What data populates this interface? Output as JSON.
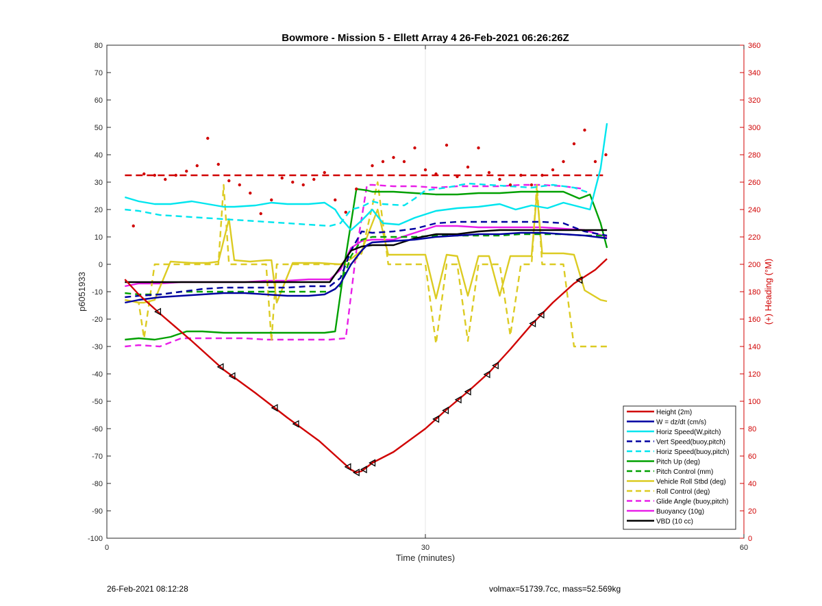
{
  "chart_data": {
    "type": "line",
    "title": "Bowmore - Mission 5 - Ellett Array 4 26-Feb-2021 06:26:26Z",
    "xlabel": "Time (minutes)",
    "ylabel_left": "p6051933",
    "ylabel_right": "(+) Heading (°M)",
    "xlim": [
      0,
      60
    ],
    "ylim_left": [
      -100,
      80
    ],
    "ylim_right": [
      0,
      360
    ],
    "x_ticks": [
      0,
      30,
      60
    ],
    "y_ticks_left": [
      80,
      70,
      60,
      50,
      40,
      30,
      20,
      10,
      0,
      -10,
      -20,
      -30,
      -40,
      -50,
      -60,
      -70,
      -80,
      -90,
      -100
    ],
    "y_ticks_right": [
      360,
      340,
      320,
      300,
      280,
      260,
      240,
      220,
      200,
      180,
      160,
      140,
      120,
      100,
      80,
      60,
      40,
      20,
      0
    ],
    "grid": "x only",
    "legend_position": "lower-right",
    "series": [
      {
        "name": "Height (2m)",
        "color": "#d00000",
        "style": "solid",
        "x": [
          1.7,
          3,
          5,
          8,
          11,
          14,
          17,
          20,
          22,
          23,
          23.5,
          24,
          25,
          27,
          30,
          32,
          34,
          36,
          38,
          40,
          42,
          44,
          46,
          47.1
        ],
        "y": [
          -5.5,
          -11,
          -18,
          -28,
          -38.5,
          -47,
          -56,
          -64.5,
          -71.5,
          -75,
          -76,
          -75.5,
          -72.5,
          -68.5,
          -60,
          -53,
          -46.5,
          -39.5,
          -31,
          -22,
          -14,
          -7,
          -2,
          2
        ]
      },
      {
        "name": "W = dz/dt (cm/s)",
        "color": "#0000a0",
        "style": "solid",
        "x": [
          1.7,
          3,
          5,
          7,
          9,
          11,
          13,
          15,
          17,
          19,
          20.5,
          21.5,
          22,
          23,
          24,
          24.5,
          25,
          27,
          29,
          31,
          33,
          35,
          37,
          39,
          41,
          43,
          45,
          47.1
        ],
        "y": [
          -14,
          -13,
          -12,
          -11.5,
          -11,
          -10.5,
          -10.5,
          -11,
          -11.5,
          -11.5,
          -11,
          -9,
          -7,
          0,
          5,
          7,
          8,
          8.5,
          9,
          10,
          10.5,
          11,
          11,
          11.5,
          11.5,
          11,
          10.5,
          9.5
        ]
      },
      {
        "name": "Horiz Speed(W,pitch)",
        "color": "#00e5ee",
        "style": "solid",
        "x": [
          1.7,
          3,
          4.5,
          6,
          8,
          9.5,
          11,
          12,
          14,
          15.5,
          17,
          19,
          20.5,
          21.5,
          22,
          23,
          24,
          25,
          26,
          27.5,
          29,
          31,
          33,
          35,
          37,
          38.5,
          40,
          41.5,
          43,
          44.5,
          45.5,
          46.5,
          47.1
        ],
        "y": [
          24.5,
          23,
          22,
          22,
          23,
          22,
          21,
          21,
          21.5,
          22.5,
          22,
          22,
          22.5,
          20,
          17,
          12.5,
          16,
          20,
          15,
          14.5,
          17,
          19.5,
          20.5,
          21,
          22,
          20,
          21.5,
          20.5,
          22.5,
          21,
          20,
          35,
          51.5
        ]
      },
      {
        "name": "Vert Speed(buoy,pitch)",
        "color": "#0000a0",
        "style": "dashed",
        "x": [
          1.7,
          3,
          5,
          7,
          9,
          11,
          13,
          15,
          17,
          19,
          21,
          22,
          23,
          24,
          25,
          27,
          29,
          31,
          33,
          35,
          37,
          39,
          41,
          43,
          45,
          47.1
        ],
        "y": [
          -12,
          -11.5,
          -11,
          -10,
          -9,
          -8.5,
          -8.5,
          -8.5,
          -8.5,
          -8,
          -8,
          -5,
          5,
          12,
          11.5,
          12,
          13,
          15,
          15.5,
          15.5,
          15.5,
          15.5,
          15.5,
          15,
          12,
          10.5
        ]
      },
      {
        "name": "Horiz Speed(buoy,pitch)",
        "color": "#00e5ee",
        "style": "dashed",
        "x": [
          1.7,
          3,
          5,
          7,
          9,
          11,
          13,
          15,
          17,
          19,
          21,
          22,
          23,
          24,
          25,
          26,
          28,
          29,
          30,
          32,
          34,
          36,
          38,
          40,
          42,
          44,
          45.5
        ],
        "y": [
          20,
          19.5,
          18,
          17.5,
          17,
          16.5,
          16,
          15.5,
          15,
          14.5,
          14,
          15,
          20,
          21,
          23,
          22,
          21.5,
          24,
          27,
          28,
          29.5,
          29,
          28.5,
          28,
          29,
          28,
          26
        ]
      },
      {
        "name": "Pitch Up (deg)",
        "color": "#00a000",
        "style": "solid",
        "x": [
          1.7,
          3,
          4.5,
          6,
          7.5,
          9,
          11,
          13,
          15,
          17,
          19,
          20.5,
          21.5,
          22.5,
          23.5,
          24.5,
          25,
          27,
          29,
          31,
          33,
          35,
          37,
          39,
          41,
          43,
          44.5,
          45.5,
          46.5,
          47.1
        ],
        "y": [
          -27.5,
          -27,
          -27.5,
          -26.5,
          -24.5,
          -24.5,
          -25,
          -25,
          -25,
          -25,
          -25,
          -25,
          -24.5,
          3,
          27.5,
          27,
          26.5,
          26.5,
          26,
          25.5,
          25.5,
          26,
          26,
          26.5,
          26.5,
          26.5,
          24,
          25.5,
          15,
          6
        ]
      },
      {
        "name": "Pitch Control (mm)",
        "color": "#00a000",
        "style": "dashed",
        "x": [
          1.7,
          3,
          5,
          7,
          9,
          11,
          13,
          15,
          17,
          19,
          21,
          22,
          23,
          24,
          25,
          27,
          29,
          31,
          33,
          35,
          37,
          39,
          41,
          43,
          45,
          47.1
        ],
        "y": [
          -10.5,
          -11,
          -11,
          -10,
          -10,
          -10,
          -10,
          -10,
          -10,
          -10,
          -10,
          -8,
          3,
          9,
          10,
          10,
          10,
          10.5,
          10.5,
          10.5,
          10.5,
          11,
          11,
          11,
          10.5,
          10.5
        ]
      },
      {
        "name": "Vehicle Roll Stbd (deg)",
        "color": "#dccb22",
        "style": "solid",
        "x": [
          1.7,
          3,
          3.5,
          4.5,
          6,
          8,
          9.5,
          10.5,
          11.5,
          12,
          13.5,
          15,
          15.5,
          16,
          17.5,
          19,
          20,
          22,
          23,
          24,
          25.5,
          26.5,
          28,
          30,
          31,
          32,
          33,
          34,
          35,
          36,
          37,
          38,
          39,
          40,
          40.5,
          41,
          42,
          43,
          44,
          45,
          46.5,
          47.1
        ],
        "y": [
          -13,
          -14,
          -14,
          -13,
          1,
          0.5,
          0.5,
          1,
          16.5,
          1.5,
          1,
          1.5,
          1.5,
          -14,
          0.5,
          0.5,
          0.5,
          0,
          2,
          5,
          20,
          3.5,
          3.5,
          3.5,
          -12.5,
          3.5,
          3,
          -11.5,
          3,
          3,
          -11.5,
          3,
          3,
          3,
          26,
          4,
          4,
          4,
          3.5,
          -9.5,
          -13,
          -13.5
        ]
      },
      {
        "name": "Roll Control (deg)",
        "color": "#dccb22",
        "style": "dashed",
        "x": [
          1.7,
          3,
          3.5,
          4.5,
          6,
          8,
          9.5,
          10.5,
          11,
          11.5,
          12,
          13.5,
          15,
          15.5,
          16,
          17.5,
          19,
          20,
          22,
          23,
          24,
          25.5,
          26.5,
          28,
          30,
          31,
          32,
          33,
          34,
          35,
          36,
          37,
          38,
          39,
          40,
          40.5,
          41,
          42,
          43,
          44,
          45,
          46.5,
          47.1
        ],
        "y": [
          -13,
          -14,
          -27,
          0,
          0,
          0,
          0,
          0,
          29,
          0,
          0,
          0,
          0,
          -28,
          0,
          0,
          0,
          0,
          0,
          0,
          4,
          30,
          0,
          0,
          0,
          -29,
          0,
          0,
          -28,
          0,
          0,
          0,
          -26,
          0,
          0,
          29,
          0,
          0,
          0,
          -30,
          -30,
          -30,
          -30
        ]
      },
      {
        "name": "Glide Angle (buoy,pitch)",
        "color": "#e81ee8",
        "style": "dashed",
        "x": [
          1.7,
          3,
          5,
          7,
          9,
          11,
          13,
          15,
          17,
          19,
          21,
          22.5,
          23.5,
          24.5,
          25,
          27,
          29,
          31,
          33,
          35,
          37,
          39,
          41,
          43,
          45
        ],
        "y": [
          -30,
          -29.5,
          -30,
          -27,
          -27,
          -27,
          -27,
          -27.5,
          -27.5,
          -27.5,
          -27.5,
          -27,
          5,
          29,
          29,
          28.5,
          28.5,
          28,
          28.5,
          28.5,
          28.5,
          29,
          29,
          28.5,
          27.5
        ]
      },
      {
        "name": "Buoyancy (10g)",
        "color": "#e81ee8",
        "style": "solid",
        "x": [
          1.7,
          3,
          5,
          7,
          9,
          11,
          13,
          15,
          17,
          19,
          21,
          22,
          23,
          24,
          25,
          27,
          29,
          31,
          33,
          35,
          37,
          39,
          41,
          43,
          45,
          47.1
        ],
        "y": [
          -8,
          -7,
          -7,
          -6.5,
          -6.5,
          -6.5,
          -6.5,
          -6,
          -6,
          -5.5,
          -5.5,
          -2,
          6,
          8.5,
          9,
          9,
          11.5,
          14,
          14,
          13.5,
          13.5,
          13.5,
          13.5,
          13,
          12.5,
          10
        ]
      },
      {
        "name": "VBD (10 cc)",
        "color": "#000000",
        "style": "solid",
        "x": [
          1.7,
          3,
          5,
          7,
          9,
          11,
          13,
          15,
          17,
          19,
          21,
          22,
          23,
          24,
          25,
          27,
          29,
          31,
          33,
          35,
          37,
          39,
          41,
          43,
          45,
          47.1
        ],
        "y": [
          -6.5,
          -6.5,
          -6.5,
          -6.5,
          -6.5,
          -6.5,
          -6.5,
          -6.5,
          -6.5,
          -6.5,
          -6.5,
          -1,
          5,
          6.5,
          7,
          7,
          9.5,
          11,
          11,
          12,
          12.5,
          12.5,
          12.5,
          12.5,
          12.5,
          12.5
        ]
      }
    ],
    "heading": {
      "color": "#d00000",
      "reference_line_deg": 265,
      "points_x": [
        2.5,
        3.5,
        4.5,
        5.5,
        6.5,
        7.5,
        8.5,
        9.5,
        10.5,
        11.5,
        12.5,
        13.5,
        14.5,
        15.5,
        16.5,
        17.5,
        18.5,
        19.5,
        20.5,
        21.5,
        22.5,
        23.5,
        25,
        26,
        27,
        28,
        29,
        30,
        31,
        32,
        33,
        34,
        35,
        36,
        37,
        38,
        39,
        40,
        41,
        42,
        43,
        44,
        45,
        46,
        47
      ],
      "points_y": [
        228,
        266,
        265,
        262,
        265,
        268,
        272,
        292,
        273,
        261,
        258,
        252,
        237,
        247,
        263,
        260,
        258,
        262,
        267,
        247,
        238,
        255,
        272,
        275,
        278,
        275,
        285,
        269,
        266,
        287,
        264,
        271,
        285,
        267,
        262,
        258,
        265,
        258,
        265,
        269,
        275,
        288,
        298,
        275,
        280
      ]
    },
    "height_markers_x": [
      4.8,
      10.7,
      11.8,
      15.8,
      17.8,
      22.7,
      23.5,
      24.2,
      25,
      31,
      31.9,
      33.1,
      34,
      35.8,
      36.6,
      40.1,
      40.9,
      44.5
    ]
  },
  "footer": {
    "left": "26-Feb-2021 08:12:28",
    "right": "volmax=51739.7cc, mass=52.569kg"
  }
}
